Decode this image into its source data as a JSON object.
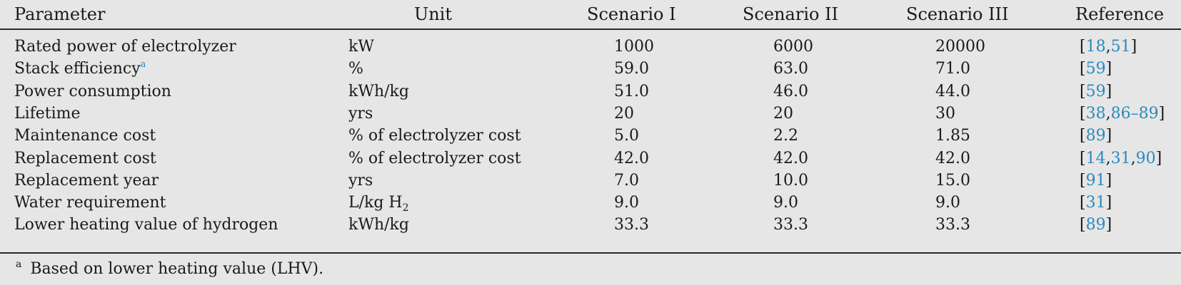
{
  "table": {
    "headers": {
      "parameter": "Parameter",
      "unit": "Unit",
      "scenario_1": "Scenario I",
      "scenario_2": "Scenario II",
      "scenario_3": "Scenario III",
      "reference": "Reference"
    },
    "rows": [
      {
        "parameter": "Rated power of electrolyzer",
        "unit": "kW",
        "unit_sub": "",
        "s1": "1000",
        "s2": "6000",
        "s3": "20000",
        "ref_parts": [
          "[",
          "18",
          ",",
          "51",
          "]"
        ]
      },
      {
        "parameter": "Stack efficiency",
        "footnote_mark": "a",
        "unit": "%",
        "unit_sub": "",
        "s1": "59.0",
        "s2": "63.0",
        "s3": "71.0",
        "ref_parts": [
          "[",
          "59",
          "]"
        ]
      },
      {
        "parameter": "Power consumption",
        "unit": "kWh/kg",
        "unit_sub": "",
        "s1": "51.0",
        "s2": "46.0",
        "s3": "44.0",
        "ref_parts": [
          "[",
          "59",
          "]"
        ]
      },
      {
        "parameter": "Lifetime",
        "unit": "yrs",
        "unit_sub": "",
        "s1": "20",
        "s2": "20",
        "s3": "30",
        "ref_parts": [
          "[",
          "38",
          ",",
          "86–89",
          "]"
        ]
      },
      {
        "parameter": "Maintenance cost",
        "unit": "% of electrolyzer cost",
        "unit_sub": "",
        "s1": "5.0",
        "s2": "2.2",
        "s3": "1.85",
        "ref_parts": [
          "[",
          "89",
          "]"
        ]
      },
      {
        "parameter": "Replacement cost",
        "unit": "% of electrolyzer cost",
        "unit_sub": "",
        "s1": "42.0",
        "s2": "42.0",
        "s3": "42.0",
        "ref_parts": [
          "[",
          "14",
          ",",
          "31",
          ",",
          "90",
          "]"
        ]
      },
      {
        "parameter": "Replacement year",
        "unit": "yrs",
        "unit_sub": "",
        "s1": "7.0",
        "s2": "10.0",
        "s3": "15.0",
        "ref_parts": [
          "[",
          "91",
          "]"
        ]
      },
      {
        "parameter": "Water requirement",
        "unit": "L/kg H",
        "unit_sub": "2",
        "s1": "9.0",
        "s2": "9.0",
        "s3": "9.0",
        "ref_parts": [
          "[",
          "31",
          "]"
        ]
      },
      {
        "parameter": "Lower heating value of hydrogen",
        "unit": "kWh/kg",
        "unit_sub": "",
        "s1": "33.3",
        "s2": "33.3",
        "s3": "33.3",
        "ref_parts": [
          "[",
          "89",
          "]"
        ]
      }
    ]
  },
  "footnote": {
    "mark": "a",
    "text": "Based on lower heating value (LHV)."
  },
  "colors": {
    "background": "#e6e6e6",
    "text": "#1a1a1a",
    "link": "#2a8ac0",
    "rule": "#2a2a2a"
  }
}
